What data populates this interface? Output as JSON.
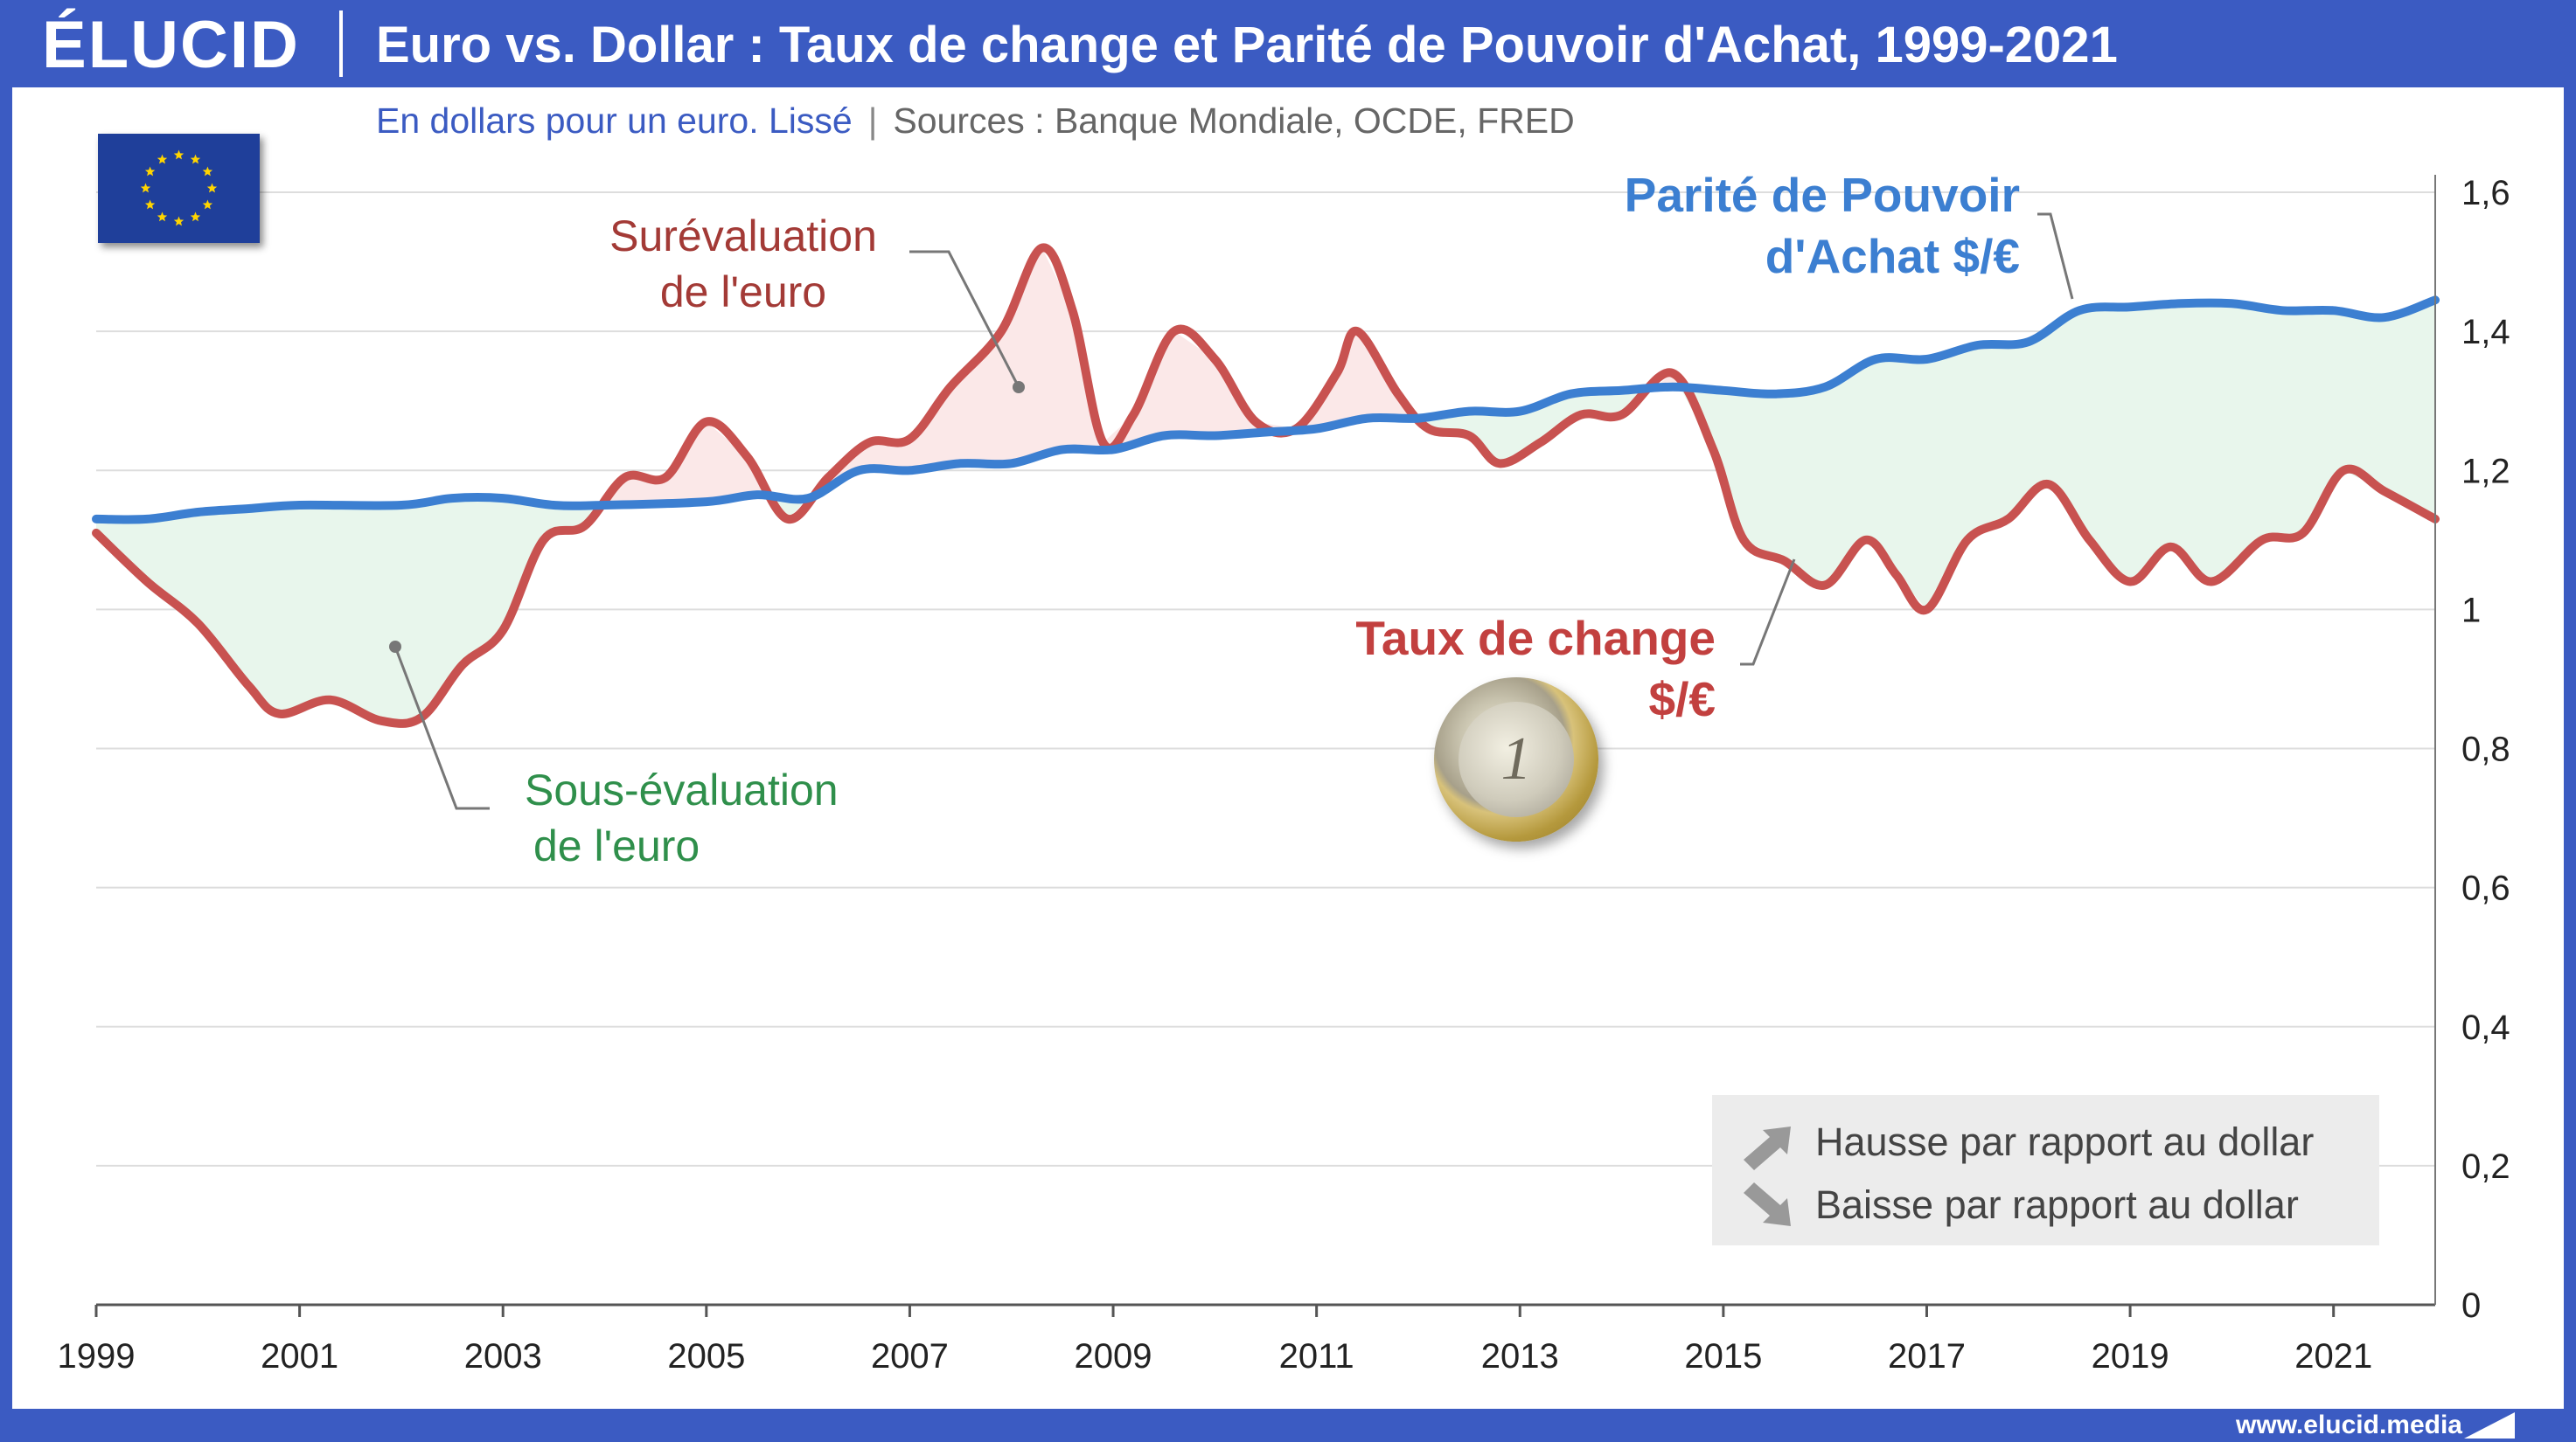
{
  "header": {
    "logo": "ÉLUCID",
    "title": "Euro vs. Dollar : Taux de change et Parité de Pouvoir d'Achat, 1999-2021"
  },
  "subtitle": {
    "main": "En dollars pour un euro. Lissé",
    "separator": "|",
    "sources": "Sources : Banque Mondiale, OCDE, FRED"
  },
  "footer": {
    "url": "www.elucid.media"
  },
  "annotations": {
    "overvaluation": [
      "Surévaluation",
      "de l'euro"
    ],
    "undervaluation": [
      "Sous-évaluation",
      "de l'euro"
    ],
    "ppa_label": [
      "Parité de Pouvoir",
      "d'Achat $/€"
    ],
    "rate_label": [
      "Taux de change",
      "$/€"
    ]
  },
  "coin": {
    "text": "1"
  },
  "legend": {
    "up": "Hausse par rapport au dollar",
    "down": "Baisse par rapport au dollar"
  },
  "colors": {
    "header": "#3b5bc2",
    "ppa_line": "#3c7fd1",
    "rate_line": "#c85250",
    "over_fill": "#fbe8e8",
    "under_fill": "#e8f6ec",
    "grid": "#dddddd",
    "legend_arrow": "#999999"
  },
  "icons": {
    "flag": "eu-flag-icon",
    "coin": "one-euro-coin-icon",
    "up": "arrow-up-right-icon",
    "down": "arrow-down-right-icon"
  },
  "chart_data": {
    "type": "line",
    "xlim": [
      1999,
      2022
    ],
    "ylim": [
      0,
      1.6
    ],
    "x_ticks": [
      1999,
      2001,
      2003,
      2005,
      2007,
      2009,
      2011,
      2013,
      2015,
      2017,
      2019,
      2021
    ],
    "x_tick_labels": [
      "1999",
      "2001",
      "2003",
      "2005",
      "2007",
      "2009",
      "2011",
      "2013",
      "2015",
      "2017",
      "2019",
      "2021"
    ],
    "y_ticks": [
      0,
      0.2,
      0.4,
      0.6,
      0.8,
      1.0,
      1.2,
      1.4,
      1.6
    ],
    "y_tick_labels": [
      "0",
      "0,2",
      "0,4",
      "0,6",
      "0,8",
      "1",
      "1,2",
      "1,4",
      "1,6"
    ],
    "grid": true,
    "series": [
      {
        "name": "Parité de Pouvoir d'Achat $/€",
        "points": [
          [
            1999.0,
            1.13
          ],
          [
            1999.5,
            1.13
          ],
          [
            2000.0,
            1.14
          ],
          [
            2000.5,
            1.145
          ],
          [
            2001.0,
            1.15
          ],
          [
            2002.0,
            1.15
          ],
          [
            2002.5,
            1.16
          ],
          [
            2003.0,
            1.16
          ],
          [
            2003.5,
            1.15
          ],
          [
            2004.0,
            1.15
          ],
          [
            2005.0,
            1.155
          ],
          [
            2005.5,
            1.165
          ],
          [
            2006.0,
            1.16
          ],
          [
            2006.5,
            1.2
          ],
          [
            2007.0,
            1.2
          ],
          [
            2007.5,
            1.21
          ],
          [
            2008.0,
            1.21
          ],
          [
            2008.5,
            1.23
          ],
          [
            2009.0,
            1.23
          ],
          [
            2009.5,
            1.25
          ],
          [
            2010.0,
            1.25
          ],
          [
            2010.5,
            1.255
          ],
          [
            2011.0,
            1.26
          ],
          [
            2011.5,
            1.275
          ],
          [
            2012.0,
            1.275
          ],
          [
            2012.5,
            1.285
          ],
          [
            2013.0,
            1.285
          ],
          [
            2013.5,
            1.31
          ],
          [
            2014.0,
            1.315
          ],
          [
            2014.5,
            1.32
          ],
          [
            2015.0,
            1.315
          ],
          [
            2015.5,
            1.31
          ],
          [
            2016.0,
            1.32
          ],
          [
            2016.5,
            1.36
          ],
          [
            2017.0,
            1.36
          ],
          [
            2017.5,
            1.38
          ],
          [
            2018.0,
            1.385
          ],
          [
            2018.5,
            1.43
          ],
          [
            2019.0,
            1.435
          ],
          [
            2019.5,
            1.44
          ],
          [
            2020.0,
            1.44
          ],
          [
            2020.5,
            1.43
          ],
          [
            2021.0,
            1.43
          ],
          [
            2021.5,
            1.42
          ],
          [
            2022.0,
            1.445
          ]
        ]
      },
      {
        "name": "Taux de change $/€",
        "points": [
          [
            1999.0,
            1.11
          ],
          [
            1999.5,
            1.04
          ],
          [
            2000.0,
            0.98
          ],
          [
            2000.5,
            0.89
          ],
          [
            2000.8,
            0.85
          ],
          [
            2001.3,
            0.87
          ],
          [
            2001.8,
            0.84
          ],
          [
            2002.2,
            0.845
          ],
          [
            2002.6,
            0.92
          ],
          [
            2003.0,
            0.97
          ],
          [
            2003.4,
            1.1
          ],
          [
            2003.8,
            1.12
          ],
          [
            2004.2,
            1.19
          ],
          [
            2004.6,
            1.19
          ],
          [
            2005.0,
            1.27
          ],
          [
            2005.4,
            1.22
          ],
          [
            2005.8,
            1.13
          ],
          [
            2006.2,
            1.19
          ],
          [
            2006.6,
            1.24
          ],
          [
            2007.0,
            1.245
          ],
          [
            2007.4,
            1.32
          ],
          [
            2007.9,
            1.4
          ],
          [
            2008.3,
            1.52
          ],
          [
            2008.6,
            1.43
          ],
          [
            2008.9,
            1.24
          ],
          [
            2009.2,
            1.28
          ],
          [
            2009.6,
            1.4
          ],
          [
            2010.0,
            1.36
          ],
          [
            2010.4,
            1.27
          ],
          [
            2010.8,
            1.26
          ],
          [
            2011.2,
            1.34
          ],
          [
            2011.4,
            1.4
          ],
          [
            2011.8,
            1.31
          ],
          [
            2012.1,
            1.26
          ],
          [
            2012.5,
            1.25
          ],
          [
            2012.8,
            1.21
          ],
          [
            2013.2,
            1.24
          ],
          [
            2013.6,
            1.28
          ],
          [
            2014.0,
            1.28
          ],
          [
            2014.5,
            1.34
          ],
          [
            2014.9,
            1.23
          ],
          [
            2015.2,
            1.1
          ],
          [
            2015.6,
            1.07
          ],
          [
            2016.0,
            1.035
          ],
          [
            2016.4,
            1.1
          ],
          [
            2016.7,
            1.05
          ],
          [
            2017.0,
            1.0
          ],
          [
            2017.4,
            1.1
          ],
          [
            2017.8,
            1.13
          ],
          [
            2018.2,
            1.18
          ],
          [
            2018.6,
            1.1
          ],
          [
            2019.0,
            1.04
          ],
          [
            2019.4,
            1.09
          ],
          [
            2019.8,
            1.04
          ],
          [
            2020.3,
            1.1
          ],
          [
            2020.7,
            1.11
          ],
          [
            2021.1,
            1.2
          ],
          [
            2021.5,
            1.17
          ],
          [
            2022.0,
            1.13
          ]
        ]
      }
    ]
  }
}
